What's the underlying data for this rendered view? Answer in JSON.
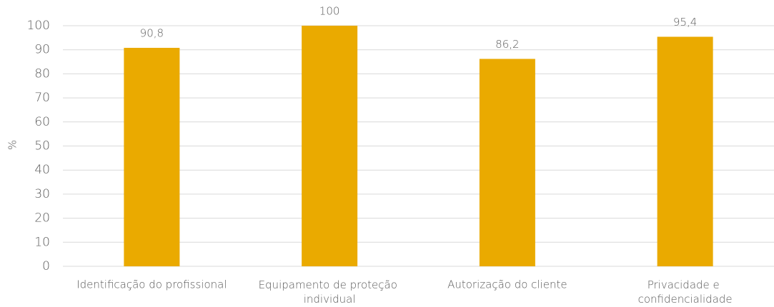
{
  "chart_data": {
    "type": "bar",
    "y_label": "%",
    "categories": [
      "Identificação do profissional",
      "Equipamento de proteção individual",
      "Autorização do cliente",
      "Privacidade e confidencialidade"
    ],
    "values": [
      90.8,
      100,
      86.2,
      95.4
    ],
    "value_labels": [
      "90,8",
      "100",
      "86,2",
      "95,4"
    ],
    "color": "#eaaa00",
    "ylim": [
      0,
      100
    ],
    "yticks": [
      0,
      10,
      20,
      30,
      40,
      50,
      60,
      70,
      80,
      90,
      100
    ],
    "grid": true
  }
}
